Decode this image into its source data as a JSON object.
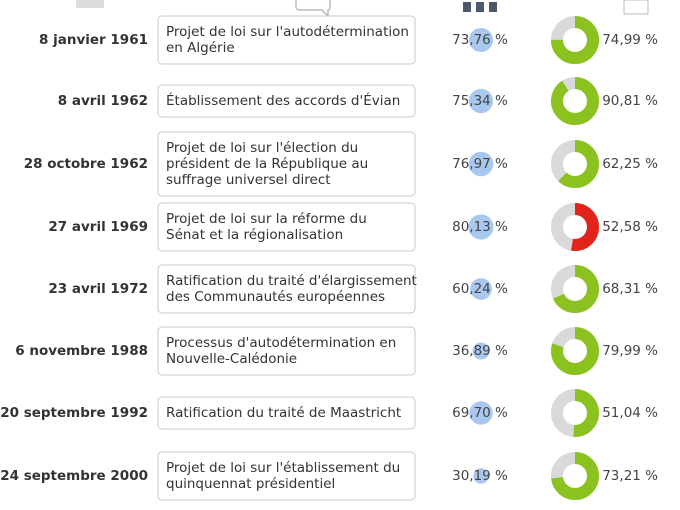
{
  "table": {
    "rows": [
      {
        "date": "8 janvier 1961",
        "theme": [
          "Projet de loi sur l'autodétermination",
          "en Algérie"
        ],
        "turnout": {
          "value": 73.76,
          "label": "73,76 %"
        },
        "result": {
          "value": 74.99,
          "label": "74,99 %"
        },
        "color": "#8cc21f"
      },
      {
        "date": "8 avril 1962",
        "theme": [
          "Établissement des accords d'Évian"
        ],
        "turnout": {
          "value": 75.34,
          "label": "75,34 %"
        },
        "result": {
          "value": 90.81,
          "label": "90,81 %"
        },
        "color": "#8cc21f"
      },
      {
        "date": "28 octobre 1962",
        "theme": [
          "Projet de loi sur l'élection du",
          "président de la République au",
          "suffrage universel direct"
        ],
        "turnout": {
          "value": 76.97,
          "label": "76,97 %"
        },
        "result": {
          "value": 62.25,
          "label": "62,25 %"
        },
        "color": "#8cc21f"
      },
      {
        "date": "27 avril 1969",
        "theme": [
          "Projet de loi sur la réforme du",
          "Sénat et la régionalisation"
        ],
        "turnout": {
          "value": 80.13,
          "label": "80,13 %"
        },
        "result": {
          "value": 52.58,
          "label": "52,58 %"
        },
        "color": "#e2231a"
      },
      {
        "date": "23 avril 1972",
        "theme": [
          "Ratification du traité d'élargissement",
          "des Communautés européennes"
        ],
        "turnout": {
          "value": 60.24,
          "label": "60,24 %"
        },
        "result": {
          "value": 68.31,
          "label": "68,31 %"
        },
        "color": "#8cc21f"
      },
      {
        "date": "6 novembre 1988",
        "theme": [
          "Processus d'autodétermination en",
          "Nouvelle-Calédonie"
        ],
        "turnout": {
          "value": 36.89,
          "label": "36,89 %"
        },
        "result": {
          "value": 79.99,
          "label": "79,99 %"
        },
        "color": "#8cc21f"
      },
      {
        "date": "20 septembre 1992",
        "theme": [
          "Ratification du traité de Maastricht"
        ],
        "turnout": {
          "value": 69.7,
          "label": "69,70 %"
        },
        "result": {
          "value": 51.04,
          "label": "51,04 %"
        },
        "color": "#8cc21f"
      },
      {
        "date": "24 septembre 2000",
        "theme": [
          "Projet de loi sur l'établissement du",
          "quinquennat présidentiel"
        ],
        "turnout": {
          "value": 30.19,
          "label": "30,19 %"
        },
        "result": {
          "value": 73.21,
          "label": "73,21 %"
        },
        "color": "#8cc21f"
      }
    ]
  }
}
